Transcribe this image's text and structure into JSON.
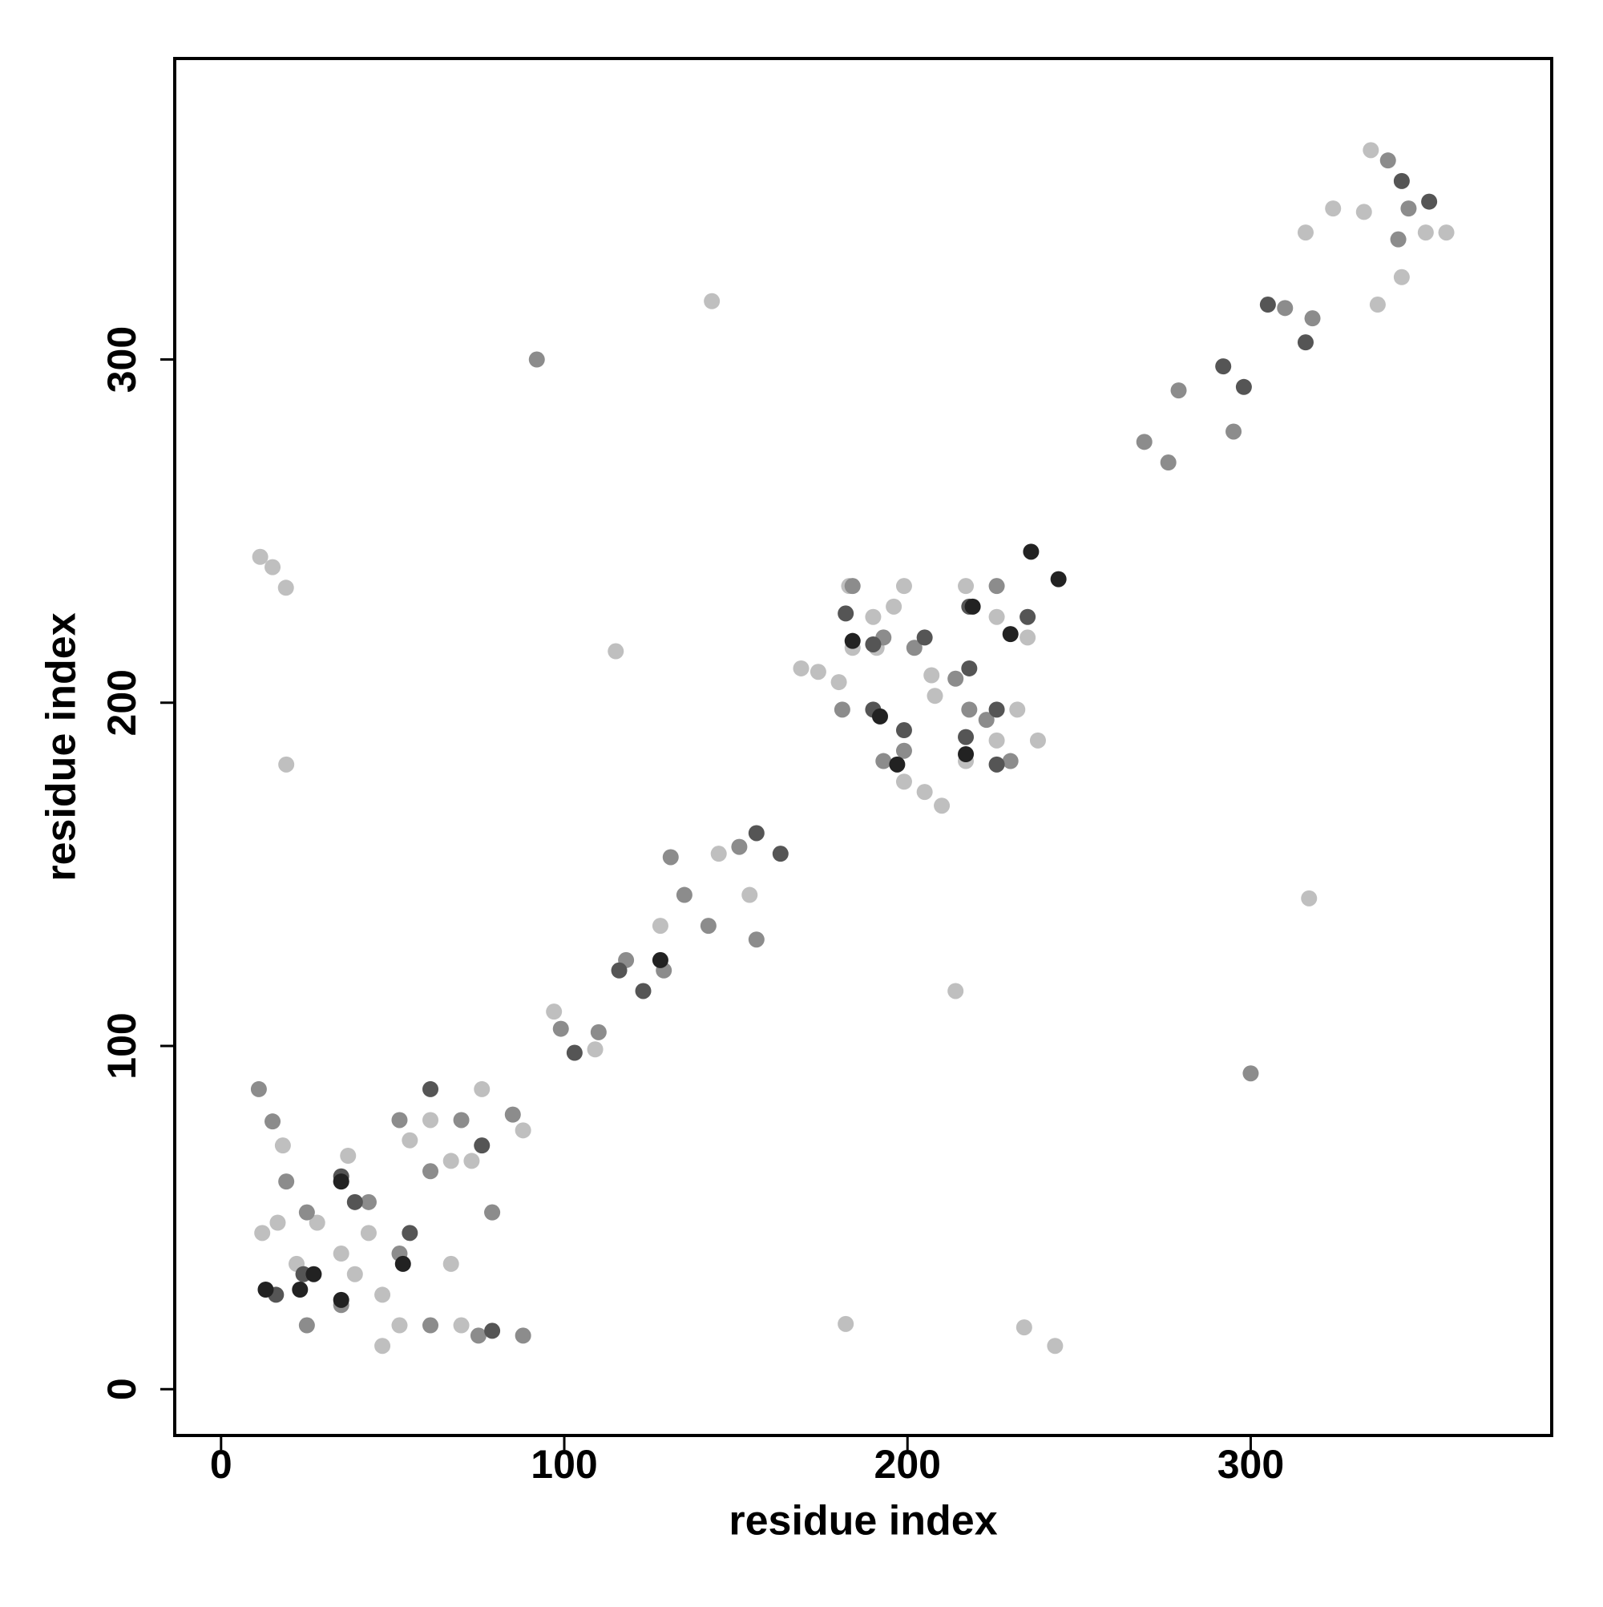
{
  "chart_data": {
    "type": "scatter",
    "xlabel": "residue index",
    "ylabel": "residue index",
    "xlim": [
      -13.5,
      387.7
    ],
    "ylim": [
      -13.5,
      387.7
    ],
    "xticks": [
      0,
      100,
      200,
      300
    ],
    "yticks": [
      0,
      100,
      200,
      300
    ],
    "series": [
      {
        "color": "#bfbfbf",
        "x": [
          11.4,
          15,
          18.9,
          19,
          115,
          143,
          182,
          234,
          243,
          316,
          324,
          337,
          344,
          335,
          333,
          351,
          357,
          317,
          214,
          207,
          208,
          169,
          174,
          180,
          199,
          205,
          210,
          183,
          190,
          196,
          199,
          217,
          226,
          235,
          232,
          238,
          217,
          226,
          184,
          191,
          12,
          16.5,
          22,
          28,
          35,
          39,
          43,
          47,
          52,
          55,
          61,
          67,
          73,
          76,
          79,
          88,
          67,
          70,
          47,
          37,
          18,
          97,
          109,
          145,
          154,
          128
        ],
        "y": [
          242.5,
          239.5,
          233.5,
          182,
          215,
          317,
          19,
          18,
          12.6,
          337,
          344,
          316,
          324,
          361,
          343,
          337,
          337,
          143,
          116,
          208,
          202,
          210,
          209,
          206,
          177,
          174,
          170,
          234,
          225,
          228,
          234,
          234,
          225,
          219,
          198,
          189,
          183,
          189,
          216,
          216,
          45.5,
          48.5,
          36.5,
          48.5,
          39.5,
          33.5,
          45.5,
          27.5,
          18.6,
          72.5,
          78.4,
          66.5,
          66.5,
          87.4,
          51.5,
          75.4,
          36.5,
          18.6,
          12.6,
          68,
          71,
          110,
          99,
          156,
          144,
          135
        ]
      },
      {
        "color": "#8c8c8c",
        "x": [
          92,
          300,
          276,
          269,
          279,
          295,
          310,
          318,
          340,
          346,
          343,
          184,
          193,
          202,
          214,
          218,
          223,
          181,
          193,
          199,
          230,
          226,
          11,
          15,
          19,
          25,
          35,
          43,
          52,
          61,
          70,
          79,
          85,
          88,
          75,
          61,
          52,
          25,
          35,
          118,
          129,
          135,
          142,
          151,
          156,
          131,
          99,
          110
        ],
        "y": [
          300,
          92,
          270,
          276,
          291,
          279,
          315,
          312,
          358,
          344,
          335,
          234,
          219,
          216,
          207,
          198,
          195,
          198,
          183,
          186,
          183,
          234,
          87.4,
          78,
          60.5,
          51.5,
          60.5,
          54.5,
          78.4,
          63.5,
          78.4,
          51.5,
          80,
          15.6,
          15.6,
          18.6,
          39.5,
          18.6,
          24.5,
          125,
          122,
          144,
          135,
          158,
          131,
          155,
          105,
          104
        ]
      },
      {
        "color": "#555555",
        "x": [
          16,
          24,
          35,
          39,
          55,
          61,
          76,
          79,
          103,
          116,
          123,
          163,
          156,
          292,
          298,
          305,
          316,
          352,
          344,
          190,
          199,
          205,
          218,
          226,
          235,
          182,
          190,
          218,
          217,
          226
        ],
        "y": [
          27.5,
          33.5,
          62,
          54.5,
          45.5,
          87.4,
          71,
          17,
          98,
          122,
          116,
          156,
          162,
          298,
          292,
          316,
          305,
          346,
          352,
          198,
          192,
          219,
          210,
          198,
          225,
          226,
          217,
          228,
          190,
          182
        ]
      },
      {
        "color": "#222222",
        "x": [
          236,
          244,
          27,
          35,
          23,
          35,
          53,
          13,
          192,
          184,
          217,
          230,
          219,
          197,
          128
        ],
        "y": [
          244,
          236,
          33.5,
          26,
          29,
          60.5,
          36.5,
          29,
          196,
          218,
          185,
          220,
          228,
          182,
          125
        ]
      }
    ]
  }
}
